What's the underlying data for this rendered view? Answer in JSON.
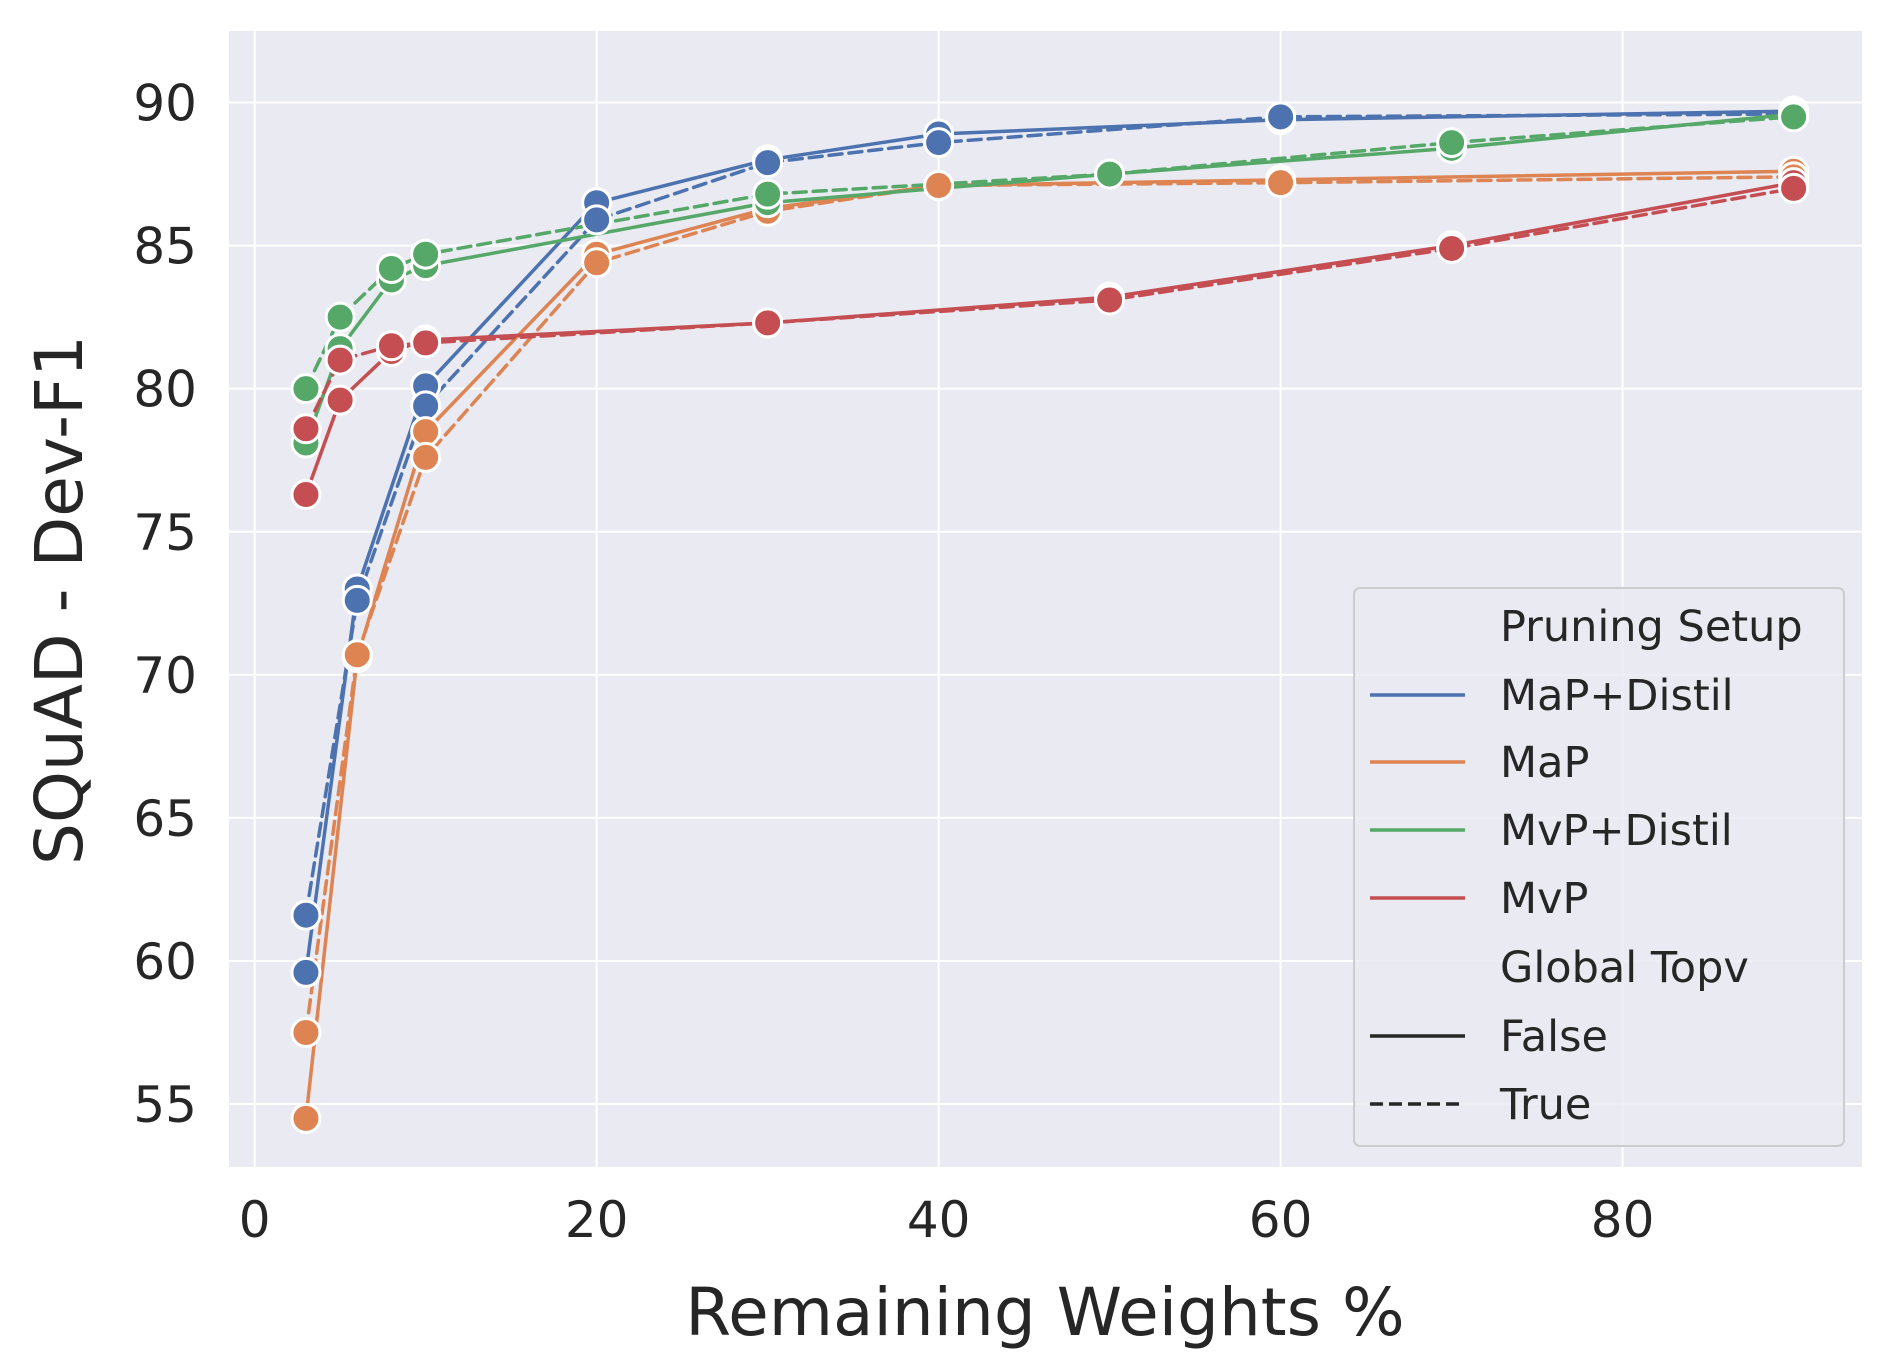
{
  "chart_data": {
    "type": "line",
    "title": "",
    "xlabel": "Remaining Weights %",
    "ylabel": "SQuAD - Dev-F1",
    "xlim": [
      -1.5,
      94
    ],
    "ylim": [
      52.8,
      92.5
    ],
    "xticks": [
      0,
      20,
      40,
      60,
      80
    ],
    "yticks": [
      55,
      60,
      65,
      70,
      75,
      80,
      85,
      90
    ],
    "grid": true,
    "legend": {
      "position": "lower-right",
      "hue_title": "Pruning Setup",
      "style_title": "Global Topv",
      "style_entries": [
        {
          "label": "False",
          "dash": "solid"
        },
        {
          "label": "True",
          "dash": "dashed"
        }
      ]
    },
    "series": [
      {
        "name": "MaP+Distil",
        "color": "#4c72b0",
        "global_topv": "False",
        "x": [
          3,
          6,
          10,
          20,
          30,
          40,
          60,
          90
        ],
        "y": [
          59.6,
          73.0,
          80.1,
          86.5,
          88.0,
          88.9,
          89.4,
          89.7
        ]
      },
      {
        "name": "MaP+Distil",
        "color": "#4c72b0",
        "global_topv": "True",
        "x": [
          3,
          6,
          10,
          20,
          30,
          40,
          60,
          90
        ],
        "y": [
          61.6,
          72.6,
          79.4,
          85.9,
          87.9,
          88.6,
          89.5,
          89.6
        ]
      },
      {
        "name": "MaP",
        "color": "#dd8452",
        "global_topv": "False",
        "x": [
          3,
          6,
          10,
          20,
          30,
          40,
          60,
          90
        ],
        "y": [
          54.5,
          70.6,
          78.5,
          84.7,
          86.3,
          87.1,
          87.3,
          87.6
        ]
      },
      {
        "name": "MaP",
        "color": "#dd8452",
        "global_topv": "True",
        "x": [
          3,
          6,
          10,
          20,
          30,
          40,
          60,
          90
        ],
        "y": [
          57.5,
          70.7,
          77.6,
          84.4,
          86.2,
          87.1,
          87.2,
          87.4
        ]
      },
      {
        "name": "MvP+Distil",
        "color": "#55a868",
        "global_topv": "False",
        "x": [
          3,
          5,
          8,
          10,
          30,
          50,
          70,
          90
        ],
        "y": [
          78.1,
          81.4,
          83.8,
          84.3,
          86.5,
          87.5,
          88.4,
          89.6
        ]
      },
      {
        "name": "MvP+Distil",
        "color": "#55a868",
        "global_topv": "True",
        "x": [
          3,
          5,
          8,
          10,
          30,
          50,
          70,
          90
        ],
        "y": [
          80.0,
          82.5,
          84.2,
          84.7,
          86.8,
          87.5,
          88.6,
          89.5
        ]
      },
      {
        "name": "MvP",
        "color": "#c44e52",
        "global_topv": "False",
        "x": [
          3,
          5,
          8,
          10,
          30,
          50,
          70,
          90
        ],
        "y": [
          76.3,
          79.6,
          81.3,
          81.7,
          82.3,
          83.2,
          85.0,
          87.2
        ]
      },
      {
        "name": "MvP",
        "color": "#c44e52",
        "global_topv": "True",
        "x": [
          3,
          5,
          8,
          10,
          30,
          50,
          70,
          90
        ],
        "y": [
          78.6,
          81.0,
          81.5,
          81.6,
          82.3,
          83.1,
          84.9,
          87.0
        ]
      }
    ],
    "legend_hue_entries": [
      {
        "label": "MaP+Distil",
        "color": "#4c72b0"
      },
      {
        "label": "MaP",
        "color": "#dd8452"
      },
      {
        "label": "MvP+Distil",
        "color": "#55a868"
      },
      {
        "label": "MvP",
        "color": "#c44e52"
      }
    ]
  },
  "colors": {
    "plot_background": "#eaeaf2",
    "grid": "#ffffff",
    "text": "#262626"
  }
}
